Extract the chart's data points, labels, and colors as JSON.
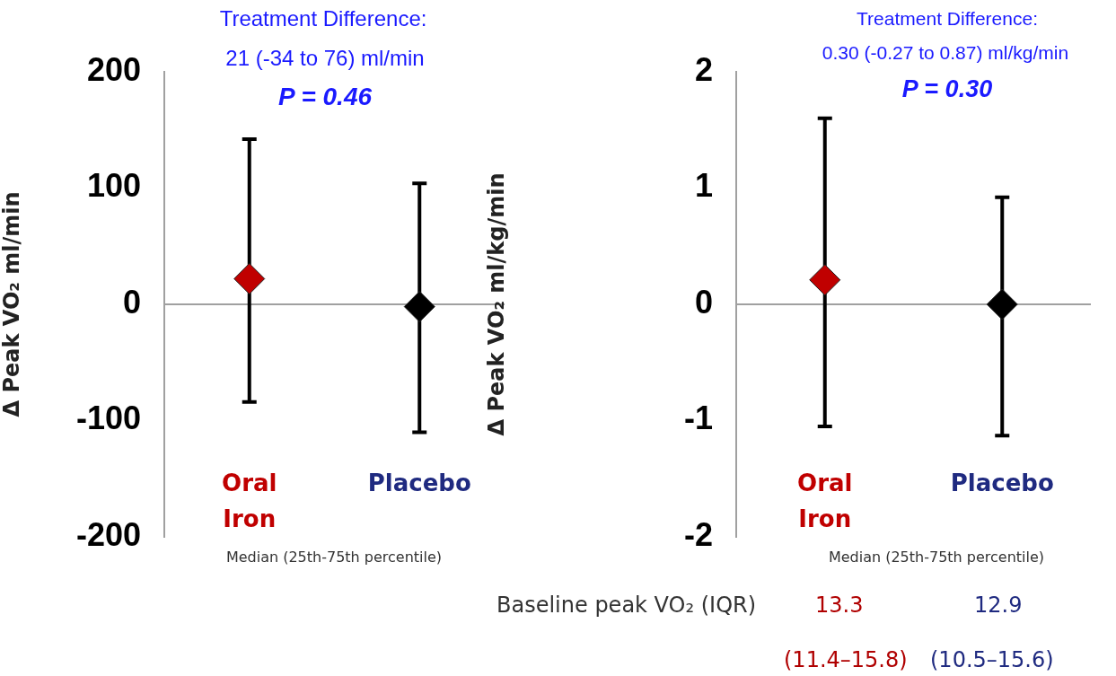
{
  "chart_data": [
    {
      "type": "scatter",
      "categories": [
        "Oral Iron",
        "Placebo"
      ],
      "values": [
        22,
        -2
      ],
      "errors": [
        [
          -84,
          142
        ],
        [
          -110,
          104
        ]
      ],
      "colors": [
        "#c00000",
        "#000000"
      ],
      "marker": "diamond",
      "ylabel": "Δ Peak VO₂ ml/min",
      "ylim": [
        -200,
        200
      ],
      "yticks": [
        -200,
        -100,
        0,
        100,
        200
      ],
      "grid": false,
      "legend": false,
      "ref_lines": [
        {
          "axis": "y",
          "value": 0,
          "color": "#a0a0a0"
        }
      ],
      "annotations": [
        "Treatment Difference:",
        "21 (-34 to 76) ml/min",
        "P = 0.46",
        "Median (25th-75th percentile)"
      ]
    },
    {
      "type": "scatter",
      "categories": [
        "Oral Iron",
        "Placebo"
      ],
      "values": [
        0.21,
        0.0
      ],
      "errors": [
        [
          -1.05,
          1.6
        ],
        [
          -1.13,
          0.92
        ]
      ],
      "colors": [
        "#c00000",
        "#000000"
      ],
      "marker": "diamond",
      "ylabel": "Δ Peak VO₂ ml/kg/min",
      "ylim": [
        -2,
        2
      ],
      "yticks": [
        -2,
        -1,
        0,
        1,
        2
      ],
      "grid": false,
      "legend": false,
      "ref_lines": [
        {
          "axis": "y",
          "value": 0,
          "color": "#a0a0a0"
        }
      ],
      "annotations": [
        "Treatment Difference:",
        "0.30 (-0.27 to 0.87) ml/kg/min",
        "P = 0.30",
        "Median (25th-75th percentile)",
        "Baseline peak VO₂ (IQR)",
        "13.3",
        "12.9",
        "(11.4–15.8)",
        "(10.5–15.6)"
      ]
    }
  ]
}
